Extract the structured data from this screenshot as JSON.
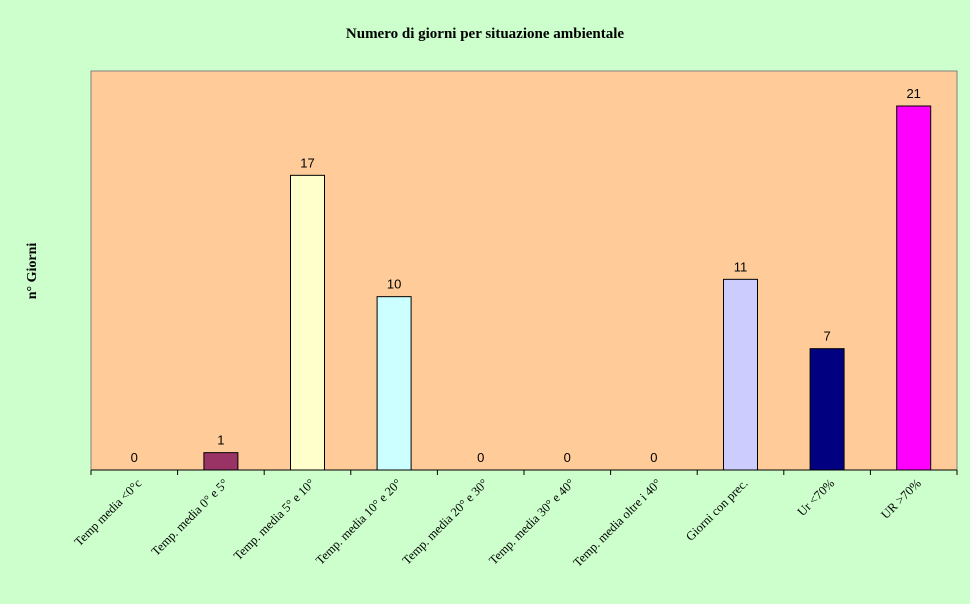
{
  "chart_data": {
    "type": "bar",
    "title": "Numero di giorni per situazione ambientale",
    "xlabel": "",
    "ylabel": "n° Giorni",
    "categories": [
      "Temp media <0°c",
      "Temp. media 0° e 5°",
      "Temp. media 5° e 10°",
      "Temp. media 10° e 20°",
      "Temp. media 20° e 30°",
      "Temp. media 30° e 40°",
      "Temp. media oltre i 40°",
      "Giorni con prec.",
      "Ur <70%",
      "UR >70%"
    ],
    "values": [
      0,
      1,
      17,
      10,
      0,
      0,
      0,
      11,
      7,
      21
    ],
    "bar_colors": [
      "#993366",
      "#993366",
      "#ffffcc",
      "#ccffff",
      "#ccffff",
      "#ccffff",
      "#ccffff",
      "#ccccff",
      "#000080",
      "#ff00ff"
    ],
    "ylim": [
      0,
      21
    ],
    "grid": false,
    "legend": "none",
    "plot_background": "#ffcc99",
    "page_background": "#ccffcc"
  }
}
